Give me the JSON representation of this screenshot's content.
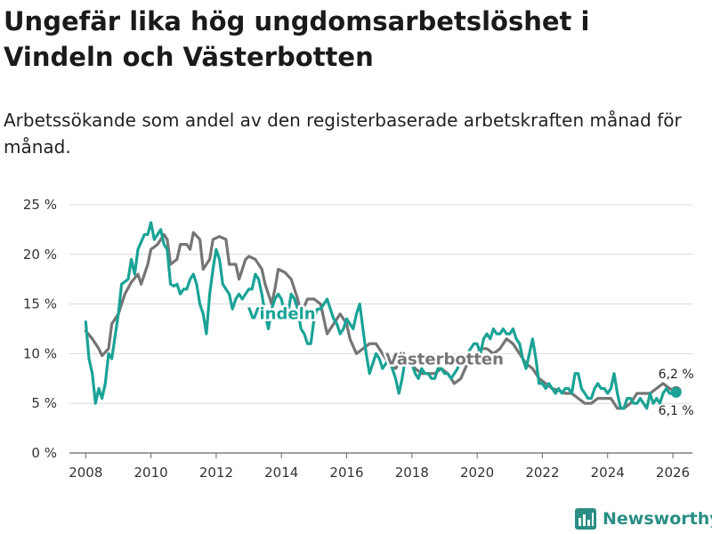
{
  "chart_data": {
    "type": "line",
    "title": "Ungefär lika hög ungdomsarbetslöshet i Vindeln och Västerbotten",
    "subtitle": "Arbetssökande som andel av den registerbaserade arbetskraften månad för månad.",
    "ylim": [
      0,
      25
    ],
    "xlim": [
      2007.5,
      2026.6
    ],
    "y_ticks": [
      0,
      5,
      10,
      15,
      20,
      25
    ],
    "y_tick_labels": [
      "0 %",
      "5 %",
      "10 %",
      "15 %",
      "20 %",
      "25 %"
    ],
    "x_ticks": [
      2008,
      2010,
      2012,
      2014,
      2016,
      2018,
      2020,
      2022,
      2024,
      2026
    ],
    "x_tick_labels": [
      "2008",
      "2010",
      "2012",
      "2014",
      "2016",
      "2018",
      "2020",
      "2022",
      "2024",
      "2026"
    ],
    "series": [
      {
        "name": "Västerbotten",
        "color": "#757575",
        "end_label": "6,2 %",
        "points": [
          [
            2008.0,
            12.3
          ],
          [
            2008.2,
            11.5
          ],
          [
            2008.4,
            10.5
          ],
          [
            2008.5,
            9.8
          ],
          [
            2008.7,
            10.5
          ],
          [
            2008.8,
            13.0
          ],
          [
            2009.0,
            14.0
          ],
          [
            2009.2,
            16.0
          ],
          [
            2009.4,
            17.2
          ],
          [
            2009.6,
            18.0
          ],
          [
            2009.7,
            17.0
          ],
          [
            2009.9,
            19.0
          ],
          [
            2010.0,
            20.5
          ],
          [
            2010.2,
            21.0
          ],
          [
            2010.4,
            22.0
          ],
          [
            2010.5,
            21.5
          ],
          [
            2010.6,
            19.0
          ],
          [
            2010.8,
            19.5
          ],
          [
            2010.9,
            21.0
          ],
          [
            2011.1,
            21.0
          ],
          [
            2011.2,
            20.5
          ],
          [
            2011.3,
            22.2
          ],
          [
            2011.5,
            21.5
          ],
          [
            2011.6,
            18.5
          ],
          [
            2011.8,
            19.5
          ],
          [
            2011.9,
            21.5
          ],
          [
            2012.1,
            21.8
          ],
          [
            2012.3,
            21.5
          ],
          [
            2012.4,
            19.0
          ],
          [
            2012.6,
            19.0
          ],
          [
            2012.7,
            17.5
          ],
          [
            2012.9,
            19.5
          ],
          [
            2013.0,
            19.8
          ],
          [
            2013.2,
            19.5
          ],
          [
            2013.4,
            18.5
          ],
          [
            2013.5,
            17.0
          ],
          [
            2013.7,
            15.0
          ],
          [
            2013.8,
            16.5
          ],
          [
            2013.9,
            18.5
          ],
          [
            2014.1,
            18.2
          ],
          [
            2014.3,
            17.5
          ],
          [
            2014.5,
            15.5
          ],
          [
            2014.6,
            14.0
          ],
          [
            2014.8,
            15.5
          ],
          [
            2015.0,
            15.5
          ],
          [
            2015.2,
            15.0
          ],
          [
            2015.3,
            13.5
          ],
          [
            2015.4,
            12.0
          ],
          [
            2015.6,
            13.0
          ],
          [
            2015.8,
            14.0
          ],
          [
            2016.0,
            13.0
          ],
          [
            2016.1,
            11.5
          ],
          [
            2016.3,
            10.0
          ],
          [
            2016.5,
            10.5
          ],
          [
            2016.7,
            11.0
          ],
          [
            2016.9,
            11.0
          ],
          [
            2017.1,
            10.0
          ],
          [
            2017.3,
            9.0
          ],
          [
            2017.5,
            8.5
          ],
          [
            2017.7,
            9.5
          ],
          [
            2017.9,
            9.5
          ],
          [
            2018.1,
            8.5
          ],
          [
            2018.3,
            8.0
          ],
          [
            2018.5,
            8.0
          ],
          [
            2018.7,
            8.0
          ],
          [
            2018.9,
            8.5
          ],
          [
            2019.1,
            8.0
          ],
          [
            2019.3,
            7.0
          ],
          [
            2019.5,
            7.5
          ],
          [
            2019.7,
            9.0
          ],
          [
            2019.9,
            9.5
          ],
          [
            2020.1,
            10.5
          ],
          [
            2020.3,
            10.5
          ],
          [
            2020.5,
            10.0
          ],
          [
            2020.7,
            10.5
          ],
          [
            2020.9,
            11.5
          ],
          [
            2021.1,
            11.0
          ],
          [
            2021.3,
            10.0
          ],
          [
            2021.5,
            9.0
          ],
          [
            2021.7,
            8.5
          ],
          [
            2021.9,
            7.5
          ],
          [
            2022.1,
            7.0
          ],
          [
            2022.3,
            6.5
          ],
          [
            2022.5,
            6.3
          ],
          [
            2022.7,
            6.0
          ],
          [
            2022.9,
            6.0
          ],
          [
            2023.1,
            5.5
          ],
          [
            2023.3,
            5.0
          ],
          [
            2023.5,
            5.0
          ],
          [
            2023.7,
            5.5
          ],
          [
            2023.9,
            5.5
          ],
          [
            2024.1,
            5.5
          ],
          [
            2024.3,
            4.5
          ],
          [
            2024.5,
            4.5
          ],
          [
            2024.7,
            5.0
          ],
          [
            2024.9,
            6.0
          ],
          [
            2025.1,
            6.0
          ],
          [
            2025.3,
            6.0
          ],
          [
            2025.5,
            6.5
          ],
          [
            2025.7,
            7.0
          ],
          [
            2025.9,
            6.5
          ],
          [
            2026.1,
            6.2
          ]
        ]
      },
      {
        "name": "Vindeln",
        "color": "#1aa396",
        "end_label": "6,1 %",
        "points": [
          [
            2008.0,
            13.2
          ],
          [
            2008.1,
            9.5
          ],
          [
            2008.2,
            8.0
          ],
          [
            2008.3,
            5.0
          ],
          [
            2008.4,
            6.5
          ],
          [
            2008.5,
            5.5
          ],
          [
            2008.6,
            7.0
          ],
          [
            2008.7,
            10.0
          ],
          [
            2008.8,
            9.5
          ],
          [
            2009.0,
            14.0
          ],
          [
            2009.1,
            17.0
          ],
          [
            2009.3,
            17.5
          ],
          [
            2009.4,
            19.5
          ],
          [
            2009.5,
            18.0
          ],
          [
            2009.6,
            20.5
          ],
          [
            2009.8,
            22.0
          ],
          [
            2009.9,
            22.0
          ],
          [
            2010.0,
            23.2
          ],
          [
            2010.1,
            21.5
          ],
          [
            2010.2,
            22.0
          ],
          [
            2010.3,
            22.5
          ],
          [
            2010.4,
            21.0
          ],
          [
            2010.5,
            20.5
          ],
          [
            2010.6,
            17.0
          ],
          [
            2010.7,
            16.8
          ],
          [
            2010.8,
            17.0
          ],
          [
            2010.9,
            16.0
          ],
          [
            2011.0,
            16.5
          ],
          [
            2011.1,
            16.5
          ],
          [
            2011.2,
            17.5
          ],
          [
            2011.3,
            18.0
          ],
          [
            2011.4,
            17.0
          ],
          [
            2011.5,
            15.0
          ],
          [
            2011.6,
            14.0
          ],
          [
            2011.7,
            12.0
          ],
          [
            2011.8,
            16.0
          ],
          [
            2011.9,
            18.5
          ],
          [
            2012.0,
            20.5
          ],
          [
            2012.1,
            19.5
          ],
          [
            2012.2,
            17.0
          ],
          [
            2012.3,
            16.5
          ],
          [
            2012.4,
            16.0
          ],
          [
            2012.5,
            14.5
          ],
          [
            2012.6,
            15.5
          ],
          [
            2012.7,
            16.0
          ],
          [
            2012.8,
            15.5
          ],
          [
            2012.9,
            16.0
          ],
          [
            2013.0,
            16.5
          ],
          [
            2013.1,
            16.5
          ],
          [
            2013.2,
            18.0
          ],
          [
            2013.3,
            17.5
          ],
          [
            2013.4,
            16.0
          ],
          [
            2013.5,
            14.0
          ],
          [
            2013.6,
            12.5
          ],
          [
            2013.7,
            14.5
          ],
          [
            2013.8,
            15.5
          ],
          [
            2013.9,
            16.0
          ],
          [
            2014.0,
            15.5
          ],
          [
            2014.1,
            14.0
          ],
          [
            2014.2,
            14.0
          ],
          [
            2014.3,
            16.0
          ],
          [
            2014.4,
            15.5
          ],
          [
            2014.5,
            14.5
          ],
          [
            2014.6,
            12.5
          ],
          [
            2014.7,
            12.0
          ],
          [
            2014.8,
            11.0
          ],
          [
            2014.9,
            11.0
          ],
          [
            2015.0,
            13.5
          ],
          [
            2015.1,
            14.5
          ],
          [
            2015.2,
            14.5
          ],
          [
            2015.3,
            15.0
          ],
          [
            2015.4,
            15.5
          ],
          [
            2015.5,
            14.5
          ],
          [
            2015.6,
            13.5
          ],
          [
            2015.7,
            13.0
          ],
          [
            2015.8,
            12.0
          ],
          [
            2015.9,
            12.5
          ],
          [
            2016.0,
            13.5
          ],
          [
            2016.1,
            13.0
          ],
          [
            2016.2,
            12.5
          ],
          [
            2016.3,
            14.0
          ],
          [
            2016.4,
            15.0
          ],
          [
            2016.5,
            12.5
          ],
          [
            2016.6,
            10.0
          ],
          [
            2016.7,
            8.0
          ],
          [
            2016.8,
            9.0
          ],
          [
            2016.9,
            10.0
          ],
          [
            2017.0,
            9.5
          ],
          [
            2017.1,
            8.5
          ],
          [
            2017.2,
            9.0
          ],
          [
            2017.3,
            9.5
          ],
          [
            2017.4,
            8.5
          ],
          [
            2017.5,
            7.5
          ],
          [
            2017.6,
            6.0
          ],
          [
            2017.7,
            7.5
          ],
          [
            2017.8,
            9.5
          ],
          [
            2017.9,
            9.5
          ],
          [
            2018.0,
            9.0
          ],
          [
            2018.1,
            8.0
          ],
          [
            2018.2,
            7.5
          ],
          [
            2018.3,
            8.5
          ],
          [
            2018.4,
            8.0
          ],
          [
            2018.5,
            8.0
          ],
          [
            2018.6,
            7.5
          ],
          [
            2018.7,
            7.5
          ],
          [
            2018.8,
            8.5
          ],
          [
            2018.9,
            8.5
          ],
          [
            2019.0,
            8.0
          ],
          [
            2019.1,
            8.0
          ],
          [
            2019.2,
            7.5
          ],
          [
            2019.3,
            8.0
          ],
          [
            2019.4,
            8.5
          ],
          [
            2019.5,
            9.5
          ],
          [
            2019.6,
            9.5
          ],
          [
            2019.7,
            10.0
          ],
          [
            2019.8,
            10.5
          ],
          [
            2019.9,
            11.0
          ],
          [
            2020.0,
            11.0
          ],
          [
            2020.1,
            10.0
          ],
          [
            2020.2,
            11.5
          ],
          [
            2020.3,
            12.0
          ],
          [
            2020.4,
            11.5
          ],
          [
            2020.5,
            12.5
          ],
          [
            2020.6,
            12.0
          ],
          [
            2020.7,
            12.0
          ],
          [
            2020.8,
            12.5
          ],
          [
            2020.9,
            12.0
          ],
          [
            2021.0,
            12.0
          ],
          [
            2021.1,
            12.5
          ],
          [
            2021.2,
            11.5
          ],
          [
            2021.3,
            11.0
          ],
          [
            2021.4,
            9.5
          ],
          [
            2021.5,
            8.5
          ],
          [
            2021.6,
            10.0
          ],
          [
            2021.7,
            11.5
          ],
          [
            2021.8,
            9.5
          ],
          [
            2021.9,
            7.0
          ],
          [
            2022.0,
            7.0
          ],
          [
            2022.1,
            6.5
          ],
          [
            2022.2,
            7.0
          ],
          [
            2022.3,
            6.5
          ],
          [
            2022.4,
            6.0
          ],
          [
            2022.5,
            6.5
          ],
          [
            2022.6,
            6.0
          ],
          [
            2022.7,
            6.5
          ],
          [
            2022.8,
            6.5
          ],
          [
            2022.9,
            6.0
          ],
          [
            2023.0,
            8.0
          ],
          [
            2023.1,
            8.0
          ],
          [
            2023.2,
            6.5
          ],
          [
            2023.3,
            6.0
          ],
          [
            2023.4,
            5.5
          ],
          [
            2023.5,
            5.5
          ],
          [
            2023.6,
            6.5
          ],
          [
            2023.7,
            7.0
          ],
          [
            2023.8,
            6.5
          ],
          [
            2023.9,
            6.5
          ],
          [
            2024.0,
            6.0
          ],
          [
            2024.1,
            6.5
          ],
          [
            2024.2,
            8.0
          ],
          [
            2024.3,
            6.0
          ],
          [
            2024.4,
            4.5
          ],
          [
            2024.5,
            4.5
          ],
          [
            2024.6,
            5.5
          ],
          [
            2024.7,
            5.5
          ],
          [
            2024.8,
            5.0
          ],
          [
            2024.9,
            5.0
          ],
          [
            2025.0,
            5.5
          ],
          [
            2025.1,
            5.0
          ],
          [
            2025.2,
            4.5
          ],
          [
            2025.3,
            6.0
          ],
          [
            2025.4,
            5.0
          ],
          [
            2025.5,
            5.5
          ],
          [
            2025.6,
            5.0
          ],
          [
            2025.7,
            6.0
          ],
          [
            2025.8,
            6.5
          ],
          [
            2025.9,
            6.0
          ],
          [
            2026.0,
            6.0
          ],
          [
            2026.1,
            6.1
          ]
        ]
      }
    ],
    "annotations": [
      {
        "text": "Vindeln",
        "series": "Vindeln",
        "x": 2014.0,
        "y": 13.5
      },
      {
        "text": "Västerbotten",
        "series": "Västerbotten",
        "x": 2019.0,
        "y": 8.9
      }
    ]
  },
  "branding": {
    "name": "Newsworthy",
    "color": "#2a8e85"
  }
}
